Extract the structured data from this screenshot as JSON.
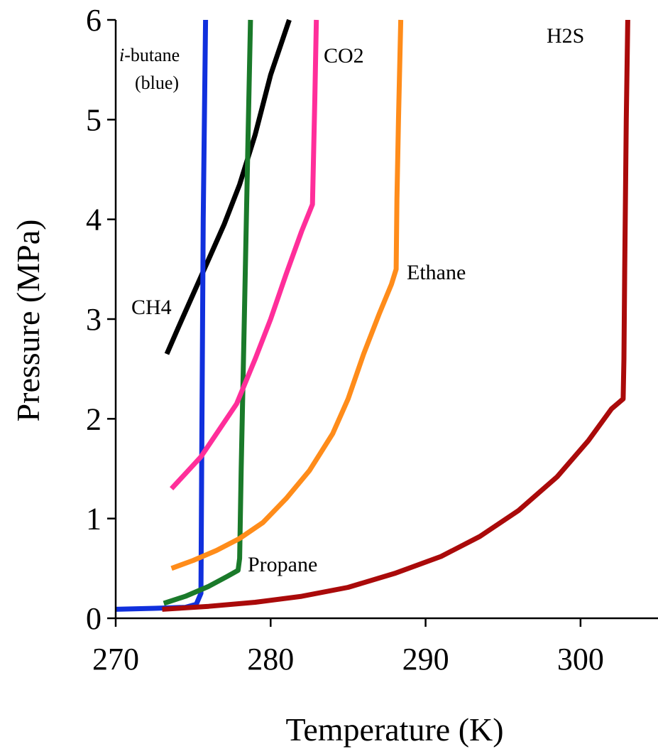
{
  "chart_data": {
    "type": "line",
    "title": "",
    "xlabel": "Temperature (K)",
    "ylabel": "Pressure (MPa)",
    "xlim": [
      270,
      305
    ],
    "ylim": [
      0,
      6
    ],
    "xticks": [
      270,
      280,
      290,
      300
    ],
    "yticks": [
      0,
      1,
      2,
      3,
      4,
      5,
      6
    ],
    "grid": false,
    "series": [
      {
        "name": "CH4",
        "color": "#000000",
        "points": [
          [
            273.3,
            2.65
          ],
          [
            274.0,
            2.9
          ],
          [
            275.0,
            3.25
          ],
          [
            276.0,
            3.6
          ],
          [
            277.0,
            3.95
          ],
          [
            278.0,
            4.35
          ],
          [
            279.0,
            4.85
          ],
          [
            280.0,
            5.45
          ],
          [
            281.2,
            6.0
          ]
        ]
      },
      {
        "name": "i-butane (blue)",
        "label_parts": {
          "italic": "i",
          "rest": "-butane",
          "note": "(blue)"
        },
        "color": "#1030dd",
        "points": [
          [
            270.0,
            0.09
          ],
          [
            272.5,
            0.1
          ],
          [
            274.5,
            0.11
          ],
          [
            275.2,
            0.14
          ],
          [
            275.5,
            0.25
          ],
          [
            275.55,
            1.5
          ],
          [
            275.65,
            4.0
          ],
          [
            275.8,
            6.0
          ]
        ]
      },
      {
        "name": "Propane",
        "color": "#1a7a2a",
        "points": [
          [
            273.1,
            0.15
          ],
          [
            274.5,
            0.22
          ],
          [
            276.0,
            0.32
          ],
          [
            277.2,
            0.42
          ],
          [
            277.9,
            0.48
          ],
          [
            278.0,
            0.6
          ],
          [
            278.1,
            1.5
          ],
          [
            278.3,
            3.0
          ],
          [
            278.5,
            4.5
          ],
          [
            278.7,
            6.0
          ]
        ]
      },
      {
        "name": "CO2",
        "color": "#ff2e9a",
        "points": [
          [
            273.6,
            1.3
          ],
          [
            274.5,
            1.45
          ],
          [
            275.5,
            1.62
          ],
          [
            276.5,
            1.85
          ],
          [
            277.8,
            2.15
          ],
          [
            279.0,
            2.6
          ],
          [
            280.0,
            3.0
          ],
          [
            281.0,
            3.45
          ],
          [
            282.0,
            3.88
          ],
          [
            282.7,
            4.15
          ],
          [
            282.75,
            4.5
          ],
          [
            282.85,
            5.2
          ],
          [
            282.95,
            6.0
          ]
        ]
      },
      {
        "name": "Ethane",
        "color": "#ff8c1a",
        "points": [
          [
            273.6,
            0.5
          ],
          [
            275.0,
            0.58
          ],
          [
            276.5,
            0.68
          ],
          [
            278.0,
            0.8
          ],
          [
            279.5,
            0.96
          ],
          [
            281.0,
            1.2
          ],
          [
            282.5,
            1.48
          ],
          [
            284.0,
            1.85
          ],
          [
            285.0,
            2.2
          ],
          [
            286.0,
            2.65
          ],
          [
            287.0,
            3.05
          ],
          [
            287.8,
            3.35
          ],
          [
            288.1,
            3.5
          ],
          [
            288.15,
            4.2
          ],
          [
            288.25,
            5.0
          ],
          [
            288.4,
            6.0
          ]
        ]
      },
      {
        "name": "H2S",
        "color": "#aa0a0a",
        "points": [
          [
            273.0,
            0.09
          ],
          [
            276.0,
            0.12
          ],
          [
            279.0,
            0.16
          ],
          [
            282.0,
            0.22
          ],
          [
            285.0,
            0.31
          ],
          [
            288.0,
            0.45
          ],
          [
            291.0,
            0.62
          ],
          [
            293.5,
            0.82
          ],
          [
            296.0,
            1.08
          ],
          [
            298.5,
            1.42
          ],
          [
            300.5,
            1.78
          ],
          [
            302.0,
            2.1
          ],
          [
            302.75,
            2.2
          ],
          [
            302.8,
            2.6
          ],
          [
            302.85,
            3.5
          ],
          [
            302.95,
            5.0
          ],
          [
            303.05,
            6.0
          ]
        ]
      }
    ],
    "annotations": {
      "ch4": "CH4",
      "ibutane_italic": "i",
      "ibutane_rest": "-butane",
      "ibutane_note": "(blue)",
      "propane": "Propane",
      "co2": "CO2",
      "ethane": "Ethane",
      "h2s": "H2S"
    }
  }
}
